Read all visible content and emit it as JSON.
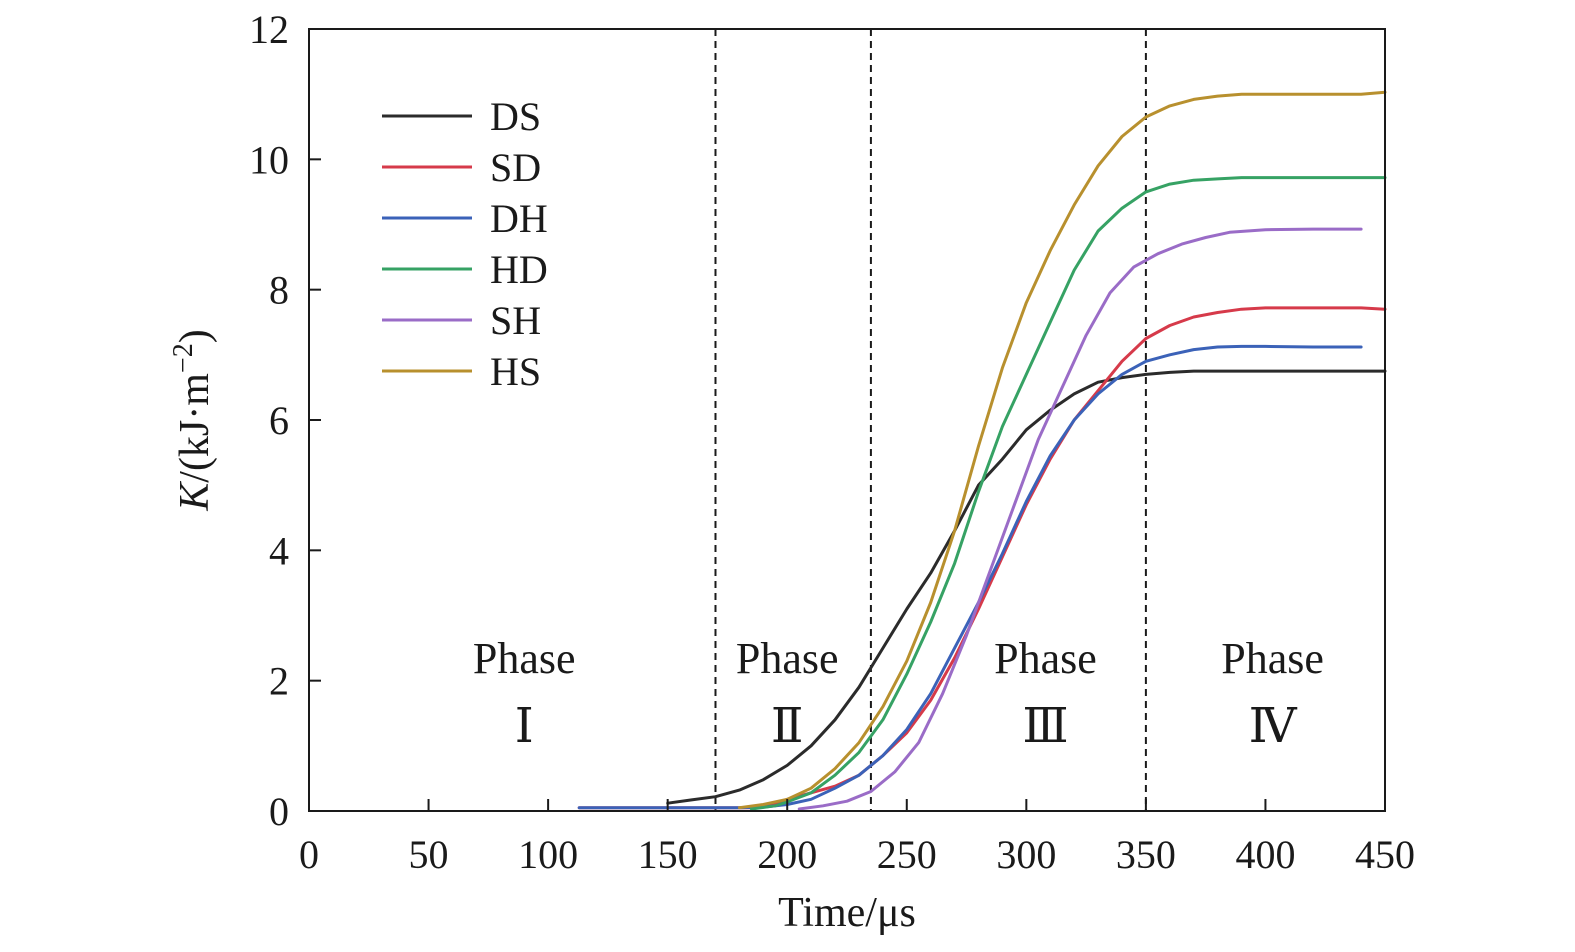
{
  "chart_data": {
    "type": "line",
    "xlabel": "Time/μs",
    "ylabel_parts": {
      "italic": "K",
      "unit": "/(kJ·m",
      "exp": "−2",
      "close": ")"
    },
    "xlim": [
      0,
      450
    ],
    "ylim": [
      0,
      12
    ],
    "x_ticks": [
      0,
      50,
      100,
      150,
      200,
      250,
      300,
      350,
      400,
      450
    ],
    "y_ticks": [
      0,
      2,
      4,
      6,
      8,
      10,
      12
    ],
    "grid": false,
    "legend_position": "top-left",
    "phase_boundaries": [
      170,
      235,
      350
    ],
    "phases": [
      {
        "label": "Phase",
        "numeral": "Ⅰ",
        "x": 90
      },
      {
        "label": "Phase",
        "numeral": "Ⅱ",
        "x": 200
      },
      {
        "label": "Phase",
        "numeral": "Ⅲ",
        "x": 308
      },
      {
        "label": "Phase",
        "numeral": "Ⅳ",
        "x": 403
      }
    ],
    "series": [
      {
        "name": "DS",
        "color": "#2b2b2b",
        "x": [
          150,
          160,
          170,
          180,
          190,
          200,
          210,
          220,
          230,
          240,
          250,
          260,
          270,
          280,
          290,
          300,
          310,
          320,
          330,
          340,
          350,
          360,
          370,
          380,
          400,
          420,
          440,
          450
        ],
        "y": [
          0.12,
          0.17,
          0.22,
          0.32,
          0.48,
          0.7,
          1.0,
          1.4,
          1.9,
          2.5,
          3.1,
          3.65,
          4.3,
          5.0,
          5.4,
          5.85,
          6.15,
          6.4,
          6.58,
          6.65,
          6.7,
          6.73,
          6.75,
          6.75,
          6.75,
          6.75,
          6.75,
          6.75
        ]
      },
      {
        "name": "SD",
        "color": "#d63a4a",
        "x": [
          113,
          150,
          185,
          195,
          200,
          210,
          220,
          230,
          240,
          250,
          260,
          270,
          280,
          290,
          300,
          310,
          320,
          330,
          340,
          350,
          360,
          370,
          380,
          390,
          400,
          420,
          440,
          450
        ],
        "y": [
          0.05,
          0.05,
          0.05,
          0.1,
          0.18,
          0.28,
          0.38,
          0.55,
          0.85,
          1.2,
          1.7,
          2.35,
          3.1,
          3.9,
          4.7,
          5.4,
          6.0,
          6.45,
          6.9,
          7.25,
          7.45,
          7.58,
          7.65,
          7.7,
          7.72,
          7.72,
          7.72,
          7.7
        ]
      },
      {
        "name": "DH",
        "color": "#3b62b8",
        "x": [
          113,
          150,
          180,
          190,
          200,
          210,
          220,
          230,
          240,
          250,
          260,
          270,
          280,
          290,
          300,
          310,
          320,
          330,
          340,
          350,
          360,
          370,
          380,
          390,
          400,
          420,
          440
        ],
        "y": [
          0.05,
          0.05,
          0.05,
          0.06,
          0.1,
          0.18,
          0.35,
          0.55,
          0.85,
          1.25,
          1.8,
          2.5,
          3.2,
          3.95,
          4.75,
          5.45,
          6.0,
          6.4,
          6.7,
          6.9,
          7.0,
          7.08,
          7.12,
          7.13,
          7.13,
          7.12,
          7.12
        ]
      },
      {
        "name": "HD",
        "color": "#36a264",
        "x": [
          185,
          195,
          200,
          210,
          220,
          230,
          240,
          250,
          260,
          270,
          280,
          290,
          300,
          310,
          320,
          330,
          340,
          350,
          360,
          370,
          380,
          390,
          400,
          420,
          440,
          450
        ],
        "y": [
          0.03,
          0.08,
          0.14,
          0.28,
          0.55,
          0.9,
          1.4,
          2.1,
          2.9,
          3.8,
          4.9,
          5.9,
          6.7,
          7.5,
          8.3,
          8.9,
          9.25,
          9.5,
          9.62,
          9.68,
          9.7,
          9.72,
          9.72,
          9.72,
          9.72,
          9.72
        ]
      },
      {
        "name": "SH",
        "color": "#9a6cc7",
        "x": [
          205,
          215,
          225,
          235,
          245,
          255,
          265,
          275,
          285,
          295,
          305,
          315,
          325,
          335,
          345,
          355,
          365,
          375,
          385,
          400,
          420,
          440
        ],
        "y": [
          0.03,
          0.08,
          0.15,
          0.3,
          0.6,
          1.05,
          1.8,
          2.7,
          3.7,
          4.7,
          5.7,
          6.5,
          7.3,
          7.95,
          8.35,
          8.55,
          8.7,
          8.8,
          8.88,
          8.92,
          8.93,
          8.93
        ]
      },
      {
        "name": "HS",
        "color": "#b8902e",
        "x": [
          180,
          190,
          200,
          210,
          220,
          230,
          240,
          250,
          260,
          270,
          280,
          290,
          300,
          310,
          320,
          330,
          340,
          350,
          360,
          370,
          380,
          390,
          400,
          420,
          440,
          450
        ],
        "y": [
          0.05,
          0.1,
          0.18,
          0.35,
          0.65,
          1.05,
          1.6,
          2.3,
          3.2,
          4.3,
          5.6,
          6.8,
          7.8,
          8.6,
          9.3,
          9.9,
          10.35,
          10.65,
          10.82,
          10.92,
          10.97,
          11.0,
          11.0,
          11.0,
          11.0,
          11.03
        ]
      }
    ]
  }
}
